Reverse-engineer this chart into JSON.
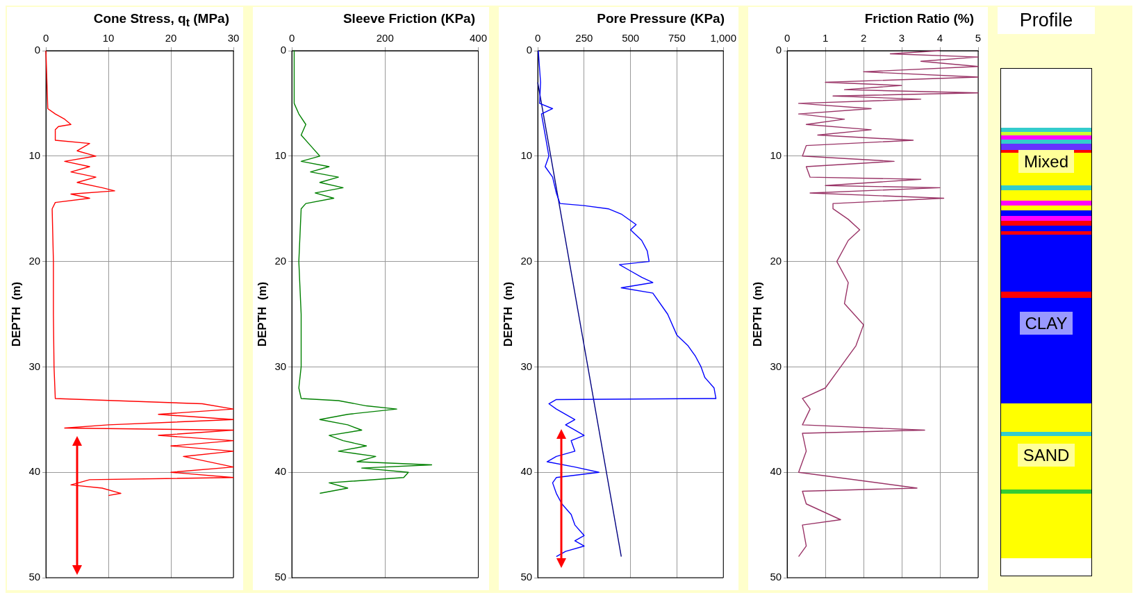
{
  "chart_data": [
    {
      "type": "line",
      "title": "Cone Stress, q$_{t}$  (MPa)",
      "ylabel": "DEPTH  (m)",
      "xlim": [
        0,
        30
      ],
      "xticks": [
        0,
        10,
        20,
        30
      ],
      "ylim": [
        50,
        0
      ],
      "yticks": [
        0,
        10,
        20,
        30,
        40,
        50
      ],
      "grid": true,
      "legend": false,
      "marker": "none",
      "series": [
        {
          "color": "#ff0000",
          "x": [
            0,
            0.3,
            1.5,
            3,
            4,
            2,
            1.5,
            1.5,
            7,
            5,
            8,
            3,
            7,
            4,
            8,
            5,
            9,
            11,
            4,
            7,
            1.5,
            1,
            1.2,
            1.2,
            1.3,
            1.5,
            25,
            30,
            18,
            30,
            10,
            3,
            30,
            18,
            30,
            20,
            30,
            22,
            30,
            20,
            30,
            7,
            4,
            9,
            12,
            10
          ],
          "values": [
            0,
            5.5,
            6,
            6.5,
            7,
            7.2,
            7.5,
            8.5,
            8.8,
            9.5,
            10,
            10.5,
            11,
            11.5,
            12,
            12.5,
            13,
            13.3,
            13.6,
            14,
            14.4,
            15,
            20,
            25,
            30,
            33,
            33.5,
            34,
            34.5,
            35,
            35.5,
            35.8,
            36,
            36.5,
            37,
            37.5,
            38,
            38.5,
            39.5,
            40,
            40.5,
            40.7,
            41.2,
            41.5,
            42,
            42.2
          ]
        }
      ]
    },
    {
      "type": "line",
      "title": "Sleeve Friction  (KPa)",
      "ylabel": "DEPTH  (m)",
      "xlim": [
        0,
        400
      ],
      "xticks": [
        0,
        200,
        400
      ],
      "ylim": [
        50,
        0
      ],
      "yticks": [
        0,
        10,
        20,
        30,
        40,
        50
      ],
      "grid": true,
      "legend": false,
      "marker": "none",
      "series": [
        {
          "color": "#008000",
          "x": [
            5,
            5,
            15,
            30,
            20,
            40,
            60,
            20,
            80,
            40,
            100,
            60,
            110,
            50,
            90,
            30,
            20,
            15,
            20,
            20,
            15,
            20,
            100,
            160,
            225,
            120,
            60,
            120,
            150,
            80,
            110,
            160,
            100,
            180,
            140,
            300,
            150,
            250,
            240,
            80,
            120,
            60
          ],
          "values": [
            0,
            5,
            6,
            7,
            8,
            9,
            10,
            10.5,
            11,
            11.5,
            12,
            12.5,
            13,
            13.5,
            14,
            14.5,
            15,
            20,
            25,
            30,
            32,
            33,
            33.2,
            33.7,
            34,
            34.5,
            35,
            35.5,
            36,
            36.5,
            37,
            37.5,
            38,
            38.5,
            39,
            39.3,
            39.6,
            40,
            40.5,
            41,
            41.5,
            42
          ]
        }
      ]
    },
    {
      "type": "line",
      "title": "Pore Pressure (KPa)",
      "ylabel": "DEPTH  (m)",
      "xlim": [
        0,
        1000
      ],
      "xticks": [
        0,
        250,
        500,
        750,
        {
          "value": 1000,
          "label": "1,000"
        }
      ],
      "ylim": [
        50,
        0
      ],
      "yticks": [
        0,
        10,
        20,
        30,
        40,
        50
      ],
      "grid": true,
      "legend": false,
      "marker": "none",
      "series": [
        {
          "color": "#0000ff",
          "x": [
            3,
            15,
            10,
            80,
            20,
            40,
            60,
            40,
            80,
            100,
            120,
            250,
            380,
            450,
            530,
            500,
            560,
            590,
            600,
            440,
            490,
            560,
            620,
            450,
            620,
            700,
            750,
            810,
            850,
            880,
            900,
            950,
            960,
            100,
            60,
            100,
            200,
            150,
            200,
            250,
            180,
            200,
            100,
            50,
            200,
            330,
            100,
            80,
            100,
            130,
            180,
            200,
            250,
            200,
            250,
            150,
            100
          ],
          "values": [
            0,
            3,
            5,
            5.5,
            6,
            8,
            10,
            11,
            12,
            13.5,
            14.5,
            14.7,
            15,
            15.5,
            16.5,
            17,
            18,
            19,
            20,
            20.3,
            20.8,
            21.5,
            22,
            22.5,
            23,
            25,
            27,
            28,
            29,
            30,
            31,
            32,
            33,
            33.1,
            33.5,
            34,
            35,
            35.5,
            36,
            36.5,
            37,
            38,
            38.5,
            39,
            39.5,
            40,
            40.5,
            41,
            42,
            43,
            44,
            45,
            46,
            46.5,
            47,
            47.5,
            48
          ]
        },
        {
          "color": "#000080",
          "x": [
            0,
            450
          ],
          "values": [
            3,
            48
          ]
        }
      ]
    },
    {
      "type": "line",
      "title": "Friction Ratio  (%)",
      "ylabel": "DEPTH  (m)",
      "xlim": [
        0,
        5
      ],
      "xticks": [
        0,
        1,
        2,
        3,
        4,
        5
      ],
      "ylim": [
        50,
        0
      ],
      "yticks": [
        0,
        10,
        20,
        30,
        40,
        50
      ],
      "grid": true,
      "legend": false,
      "marker": "none",
      "series": [
        {
          "color": "#993366",
          "x": [
            4,
            2.7,
            5,
            3.5,
            5,
            2,
            5,
            1,
            3,
            1.5,
            5,
            1.2,
            3.5,
            0.3,
            2.2,
            0.3,
            1.5,
            0.5,
            2.2,
            0.8,
            3.3,
            0.5,
            0.4,
            2.8,
            0.5,
            0.6,
            3.5,
            1,
            4,
            0.6,
            4.1,
            1.2,
            1.2,
            1.6,
            1.9,
            1.6,
            1.3,
            1.6,
            1.5,
            2,
            1.8,
            1.4,
            1,
            0.4,
            0.6,
            0.4,
            3.6,
            0.4,
            0.5,
            0.3,
            3.4,
            0.4,
            0.5,
            1.4,
            0.4,
            0.5,
            0.3
          ],
          "values": [
            0,
            0.3,
            0.6,
            1,
            1.5,
            2,
            2.5,
            3,
            3.3,
            3.7,
            4,
            4.3,
            4.6,
            5,
            5.5,
            6,
            6.5,
            7,
            7.5,
            8,
            8.5,
            9,
            10,
            10.5,
            11,
            12,
            12.2,
            12.8,
            13,
            13.5,
            14,
            14.5,
            15,
            16,
            17,
            18,
            20,
            22,
            24,
            26,
            28,
            30,
            32,
            33,
            34,
            35.5,
            36,
            36.3,
            38,
            40,
            41.5,
            41.8,
            43,
            44.5,
            45,
            47,
            48
          ]
        }
      ]
    },
    {
      "type": "other",
      "title": "Profile",
      "annotations": [
        "Mixed",
        "CLAY",
        "SAND"
      ]
    }
  ]
}
